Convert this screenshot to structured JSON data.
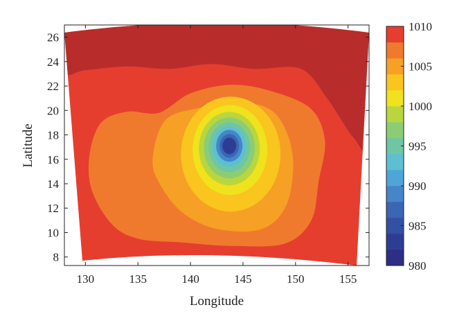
{
  "chart_data": {
    "type": "heatmap",
    "subtype": "filled-contour",
    "title": "",
    "xlabel": "Longitude",
    "ylabel": "Latitude",
    "xlim": [
      128,
      157
    ],
    "ylim": [
      7.3,
      27
    ],
    "xticks": [
      130,
      135,
      140,
      145,
      150,
      155
    ],
    "yticks": [
      8,
      10,
      12,
      14,
      16,
      18,
      20,
      22,
      24,
      26
    ],
    "grid": false,
    "colorbar": {
      "position": "right",
      "min": 980,
      "max": 1010,
      "ticks": [
        980,
        985,
        990,
        995,
        1000,
        1005,
        1010
      ],
      "levels": [
        980,
        982,
        984,
        986,
        988,
        990,
        992,
        994,
        996,
        998,
        1000,
        1002,
        1004,
        1006,
        1008,
        1010
      ],
      "colors": [
        "#2c2f85",
        "#2e3d94",
        "#3350a3",
        "#3a66b4",
        "#4586c8",
        "#4ea6d8",
        "#5cc0d2",
        "#6ec6a4",
        "#8ccd74",
        "#bad63e",
        "#f0e21c",
        "#f9c51e",
        "#f6a025",
        "#ef7a2e",
        "#e53e2f",
        "#b82d2c"
      ]
    },
    "domain_corners": {
      "top_left": [
        128,
        26.7
      ],
      "top_right": [
        157,
        26.7
      ],
      "bottom_right": [
        155.2,
        7.5
      ],
      "bottom_left": [
        129.4,
        7.6
      ]
    },
    "contour_regions": [
      {
        "min": 1008,
        "max": 1010,
        "color": "#b82d2c",
        "area": "northern band (≈23.5°N–27°N) and north-east corner down to ≈17°N at 155°E"
      },
      {
        "min": 1006,
        "max": 1008,
        "color": "#e53e2f",
        "area": "outer ring"
      },
      {
        "min": 1004,
        "max": 1006,
        "color": "#ef7a2e",
        "area": "ring around center"
      },
      {
        "min": 1002,
        "max": 1004,
        "color": "#f6a025",
        "area": "ring around center"
      },
      {
        "min": 1000,
        "max": 1002,
        "color": "#f9c51e",
        "area": "ring around center"
      },
      {
        "min": 998,
        "max": 1000,
        "color": "#f0e21c",
        "area": "ring around center"
      },
      {
        "min": 996,
        "max": 998,
        "color": "#bad63e",
        "area": "ring around center"
      },
      {
        "min": 994,
        "max": 996,
        "color": "#8ccd74",
        "area": "ring around center"
      },
      {
        "min": 992,
        "max": 994,
        "color": "#6ec6a4",
        "area": "ring around center"
      },
      {
        "min": 990,
        "max": 992,
        "color": "#5cc0d2",
        "area": "ring around center"
      },
      {
        "min": 988,
        "max": 990,
        "color": "#4586c8",
        "area": "ring around center"
      },
      {
        "min": 986,
        "max": 988,
        "color": "#3a66b4",
        "area": "ring around center"
      },
      {
        "min": 984,
        "max": 986,
        "color": "#2e3d94",
        "area": "inner core"
      }
    ],
    "pressure_center": {
      "lon": 143.7,
      "lat": 17.1,
      "value_approx": 985
    }
  }
}
